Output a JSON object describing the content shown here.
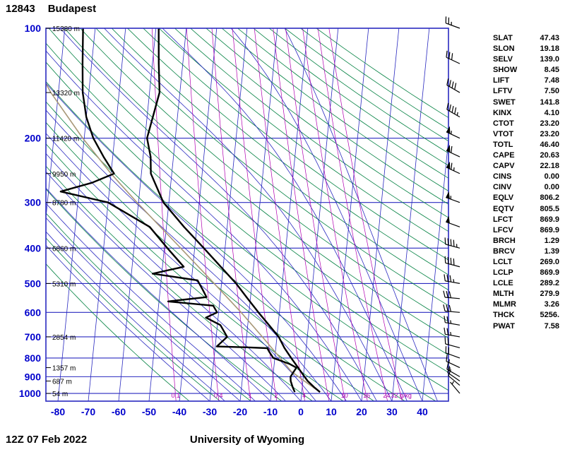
{
  "header": {
    "station_id": "12843",
    "station_name": "Budapest"
  },
  "footer": {
    "datetime": "12Z 07 Feb 2022",
    "credit": "University of Wyoming"
  },
  "indices": [
    {
      "label": "SLAT",
      "value": "47.43"
    },
    {
      "label": "SLON",
      "value": "19.18"
    },
    {
      "label": "SELV",
      "value": "139.0"
    },
    {
      "label": "SHOW",
      "value": "8.45"
    },
    {
      "label": "LIFT",
      "value": "7.48"
    },
    {
      "label": "LFTV",
      "value": "7.50"
    },
    {
      "label": "SWET",
      "value": "141.8"
    },
    {
      "label": "KINX",
      "value": "4.10"
    },
    {
      "label": "CTOT",
      "value": "23.20"
    },
    {
      "label": "VTOT",
      "value": "23.20"
    },
    {
      "label": "TOTL",
      "value": "46.40"
    },
    {
      "label": "CAPE",
      "value": "20.63"
    },
    {
      "label": "CAPV",
      "value": "22.18"
    },
    {
      "label": "CINS",
      "value": "0.00"
    },
    {
      "label": "CINV",
      "value": "0.00"
    },
    {
      "label": "EQLV",
      "value": "806.2"
    },
    {
      "label": "EQTV",
      "value": "805.5"
    },
    {
      "label": "LFCT",
      "value": "869.9"
    },
    {
      "label": "LFCV",
      "value": "869.9"
    },
    {
      "label": "BRCH",
      "value": "1.29"
    },
    {
      "label": "BRCV",
      "value": "1.39"
    },
    {
      "label": "LCLT",
      "value": "269.0"
    },
    {
      "label": "LCLP",
      "value": "869.9"
    },
    {
      "label": "LCLE",
      "value": "289.2"
    },
    {
      "label": "MLTH",
      "value": "279.9"
    },
    {
      "label": "MLMR",
      "value": "3.26"
    },
    {
      "label": "THCK",
      "value": "5256."
    },
    {
      "label": "PWAT",
      "value": "7.58"
    }
  ],
  "chart_data": {
    "type": "line",
    "subtype": "skewt-log-p-sounding",
    "pressure_ticks": [
      100,
      200,
      300,
      400,
      500,
      600,
      700,
      800,
      900,
      1000
    ],
    "pressure_range": [
      100,
      1050
    ],
    "temp_ticks": [
      -80,
      -70,
      -60,
      -50,
      -40,
      -30,
      -20,
      -10,
      0,
      10,
      20,
      30,
      40
    ],
    "temp_unit": "C",
    "height_labels": {
      "100": "15380 m",
      "150": "13320 m",
      "200": "11420 m",
      "250": "9950 m",
      "300": "8780 m",
      "400": "6860 m",
      "500": "5310 m",
      "700": "2854 m",
      "850": "1357 m",
      "925": "687 m",
      "1000": "54 m"
    },
    "mixing_ratios": [
      0.1,
      0.4,
      1,
      2,
      4,
      7,
      10,
      16,
      24,
      32
    ],
    "mixing_unit": "g/kg",
    "isotherms": {
      "min": -120,
      "max": 40,
      "step": 10
    },
    "dry_adiabats_theta_c": {
      "min": -40,
      "max": 240,
      "step": 10
    },
    "moist_adiabats_start_c": {
      "min": -30,
      "max": 45,
      "step": 5
    },
    "temperature_profile": [
      [
        992,
        6.0
      ],
      [
        960,
        3.8
      ],
      [
        925,
        1.6
      ],
      [
        900,
        0.4
      ],
      [
        850,
        -2.0
      ],
      [
        800,
        -4.6
      ],
      [
        750,
        -7.2
      ],
      [
        700,
        -9.4
      ],
      [
        650,
        -13.0
      ],
      [
        600,
        -16.9
      ],
      [
        550,
        -20.9
      ],
      [
        500,
        -25.2
      ],
      [
        450,
        -30.8
      ],
      [
        400,
        -37.0
      ],
      [
        350,
        -44.2
      ],
      [
        300,
        -51.8
      ],
      [
        250,
        -56.9
      ],
      [
        225,
        -57.5
      ],
      [
        200,
        -59.3
      ],
      [
        175,
        -58.1
      ],
      [
        150,
        -56.7
      ],
      [
        125,
        -57.9
      ],
      [
        100,
        -59.1
      ]
    ],
    "dewpoint_profile": [
      [
        992,
        -2.3
      ],
      [
        960,
        -3.2
      ],
      [
        925,
        -4.0
      ],
      [
        900,
        -4.2
      ],
      [
        850,
        -2.6
      ],
      [
        830,
        -5.0
      ],
      [
        800,
        -10.5
      ],
      [
        770,
        -12.0
      ],
      [
        752,
        -12.8
      ],
      [
        748,
        -19.5
      ],
      [
        744,
        -29.5
      ],
      [
        700,
        -26.4
      ],
      [
        650,
        -29.0
      ],
      [
        620,
        -34.0
      ],
      [
        600,
        -30.5
      ],
      [
        575,
        -32.0
      ],
      [
        560,
        -47.0
      ],
      [
        545,
        -34.5
      ],
      [
        520,
        -36.0
      ],
      [
        490,
        -38.0
      ],
      [
        470,
        -53.0
      ],
      [
        450,
        -43.0
      ],
      [
        400,
        -49.0
      ],
      [
        350,
        -55.5
      ],
      [
        300,
        -70.0
      ],
      [
        280,
        -86.0
      ],
      [
        265,
        -76.0
      ],
      [
        250,
        -69.0
      ],
      [
        225,
        -73.0
      ],
      [
        200,
        -77.0
      ],
      [
        175,
        -80.0
      ],
      [
        150,
        -82.0
      ],
      [
        125,
        -83.0
      ],
      [
        100,
        -84.0
      ]
    ],
    "parcel_profile": [
      [
        992,
        6.0
      ],
      [
        930,
        0.9
      ],
      [
        870,
        -4.2
      ],
      [
        800,
        -8.2
      ],
      [
        700,
        -14.8
      ],
      [
        600,
        -22.6
      ],
      [
        500,
        -32.4
      ],
      [
        400,
        -44.6
      ],
      [
        300,
        -60.5
      ],
      [
        250,
        -70.0
      ],
      [
        200,
        -80.5
      ],
      [
        150,
        -92.5
      ],
      [
        100,
        -106.0
      ]
    ],
    "winds": [
      [
        100,
        290,
        25
      ],
      [
        125,
        295,
        30
      ],
      [
        150,
        300,
        40
      ],
      [
        175,
        300,
        45
      ],
      [
        200,
        295,
        55
      ],
      [
        225,
        295,
        60
      ],
      [
        250,
        295,
        65
      ],
      [
        300,
        290,
        55
      ],
      [
        350,
        290,
        50
      ],
      [
        400,
        285,
        45
      ],
      [
        450,
        285,
        40
      ],
      [
        500,
        280,
        35
      ],
      [
        550,
        275,
        30
      ],
      [
        600,
        275,
        30
      ],
      [
        650,
        280,
        25
      ],
      [
        700,
        280,
        25
      ],
      [
        750,
        285,
        20
      ],
      [
        800,
        290,
        20
      ],
      [
        850,
        295,
        15
      ],
      [
        900,
        300,
        15
      ],
      [
        925,
        305,
        10
      ],
      [
        950,
        310,
        10
      ],
      [
        1000,
        320,
        5
      ]
    ],
    "colors": {
      "grid_blue": "#2a2ac0",
      "label_blue": "#0000cc",
      "adiabat_green": "#008040",
      "mixratio_purple": "#b000b0",
      "curve_black": "#000000",
      "parcel_tan": "#a89878",
      "barb_black": "#000000"
    }
  }
}
